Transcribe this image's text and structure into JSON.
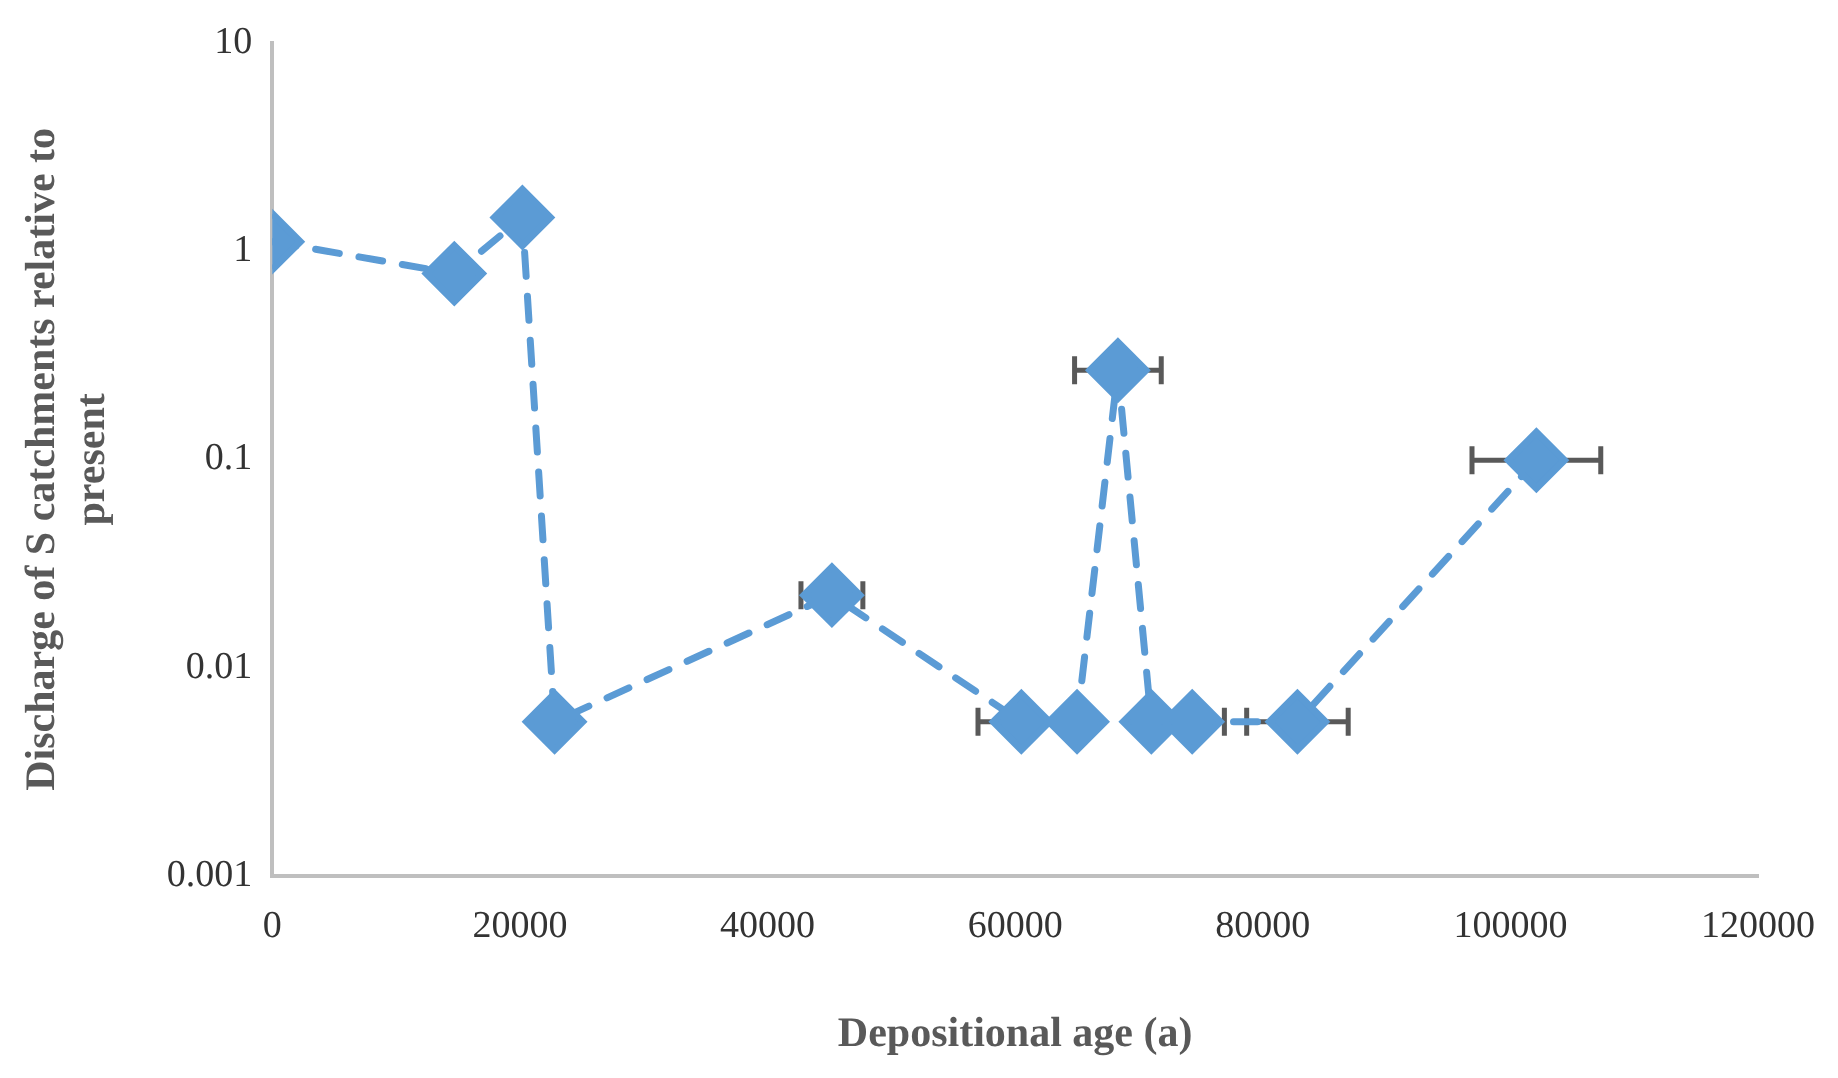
{
  "chart_data": {
    "type": "line",
    "xlabel": "Depositional age (a)",
    "ylabel": "Discharge of S catchments relative to present",
    "x": [
      0,
      14700,
      20200,
      22800,
      45200,
      60500,
      65000,
      68300,
      71000,
      74300,
      82800,
      102100
    ],
    "series": [
      {
        "color": "#5b9bd5",
        "values": [
          1.11,
          0.78,
          1.45,
          0.0055,
          0.0223,
          0.0055,
          0.0055,
          0.268,
          0.0055,
          0.0055,
          0.0055,
          0.099
        ],
        "xerrors": [
          null,
          null,
          null,
          null,
          2500,
          3500,
          null,
          3500,
          null,
          2600,
          4100,
          5200
        ]
      }
    ],
    "xlim": [
      0,
      120000
    ],
    "xticks": [
      0,
      20000,
      40000,
      60000,
      80000,
      100000,
      120000
    ],
    "ylim": [
      0.001,
      10
    ],
    "yticks": [
      0.001,
      0.01,
      0.1,
      1,
      10
    ],
    "log": "y",
    "grid": false,
    "legend": false,
    "marker": "diamond",
    "line_style": "dashed"
  }
}
